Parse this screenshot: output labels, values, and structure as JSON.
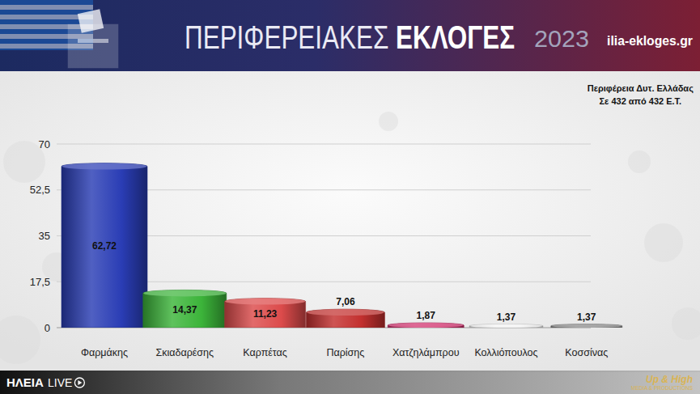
{
  "chart_data": {
    "type": "bar",
    "title": "ΠΕΡΙΦΕΡΕΙΑΚΕΣ ΕΚΛΟΓΕΣ",
    "subtitle": [
      "Περιφέρεια Δυτ. Ελλάδας",
      "Σε 432 από 432 Ε.Τ."
    ],
    "annotations": [
      "2023",
      "ilia-ekloges.gr",
      "ΗΛΕΙΑ",
      "LIVE",
      "Up & High",
      "MEDIA & PRODUCTIONS"
    ],
    "categories": [
      "Φαρμάκης",
      "Σκιαδαρέσης",
      "Καρπέτας",
      "Παρίσης",
      "Χατζηλάμπρου",
      "Κολλιόπουλος",
      "Κοσσίνας"
    ],
    "values": [
      62.72,
      14.37,
      11.23,
      7.06,
      1.87,
      1.37,
      1.37
    ],
    "value_labels": [
      "62,72",
      "14,37",
      "11,23",
      "7,06",
      "1,87",
      "1,37",
      "1,37"
    ],
    "colors": [
      "#2a3db5",
      "#3cb43a",
      "#dc4b4b",
      "#c3302f",
      "#d1306c",
      "#f2f2f2",
      "#8a8a8a"
    ],
    "ylim": [
      0,
      70
    ],
    "yticks": [
      0,
      {
        "value": 17.5,
        "label": "17,5"
      },
      35,
      {
        "value": 52.5,
        "label": "52,5"
      },
      70
    ],
    "grid": true,
    "data_labels": true
  }
}
